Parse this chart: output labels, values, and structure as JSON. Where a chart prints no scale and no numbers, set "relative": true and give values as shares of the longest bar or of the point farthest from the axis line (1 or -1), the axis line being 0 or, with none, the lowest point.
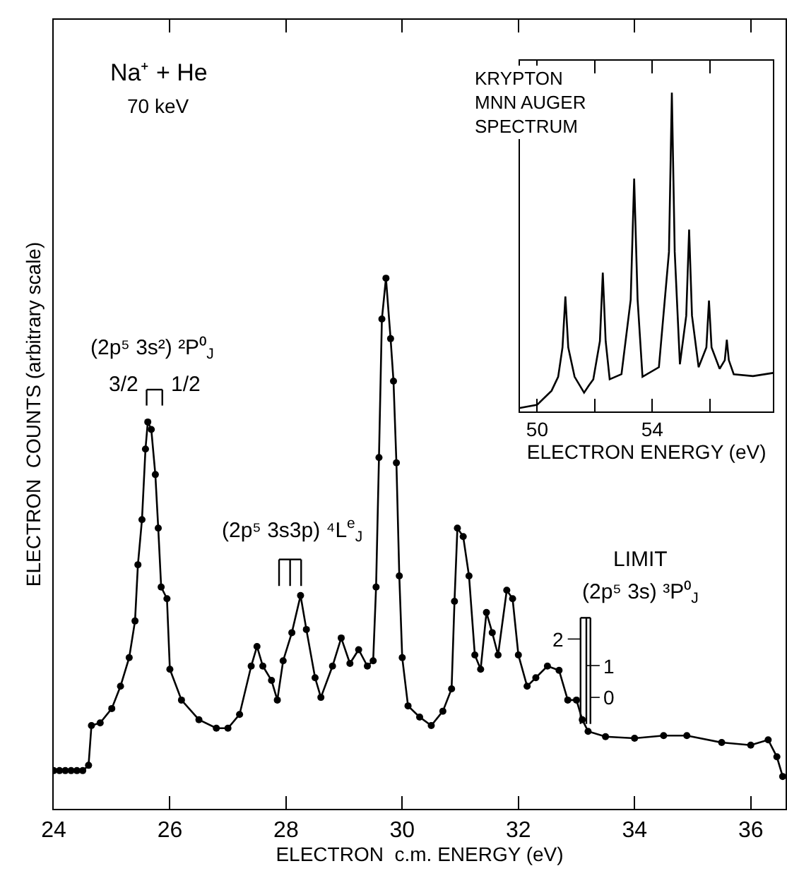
{
  "chart_data": [
    {
      "type": "line",
      "relative": true,
      "marker": "circle",
      "line_style": "solid",
      "xlabel": "ELECTRON  c.m. ENERGY (eV)",
      "ylabel": "ELECTRON  COUNTS (arbitrary scale)",
      "xlim": [
        24,
        36.6
      ],
      "xticks": [
        24,
        26,
        28,
        30,
        32,
        34,
        36
      ],
      "x": [
        24.0,
        24.1,
        24.2,
        24.3,
        24.4,
        24.5,
        24.6,
        24.65,
        24.8,
        25.0,
        25.15,
        25.3,
        25.4,
        25.45,
        25.52,
        25.58,
        25.62,
        25.68,
        25.75,
        25.8,
        25.85,
        25.95,
        26.0,
        26.2,
        26.5,
        26.8,
        27.0,
        27.2,
        27.4,
        27.5,
        27.6,
        27.75,
        27.85,
        27.95,
        28.1,
        28.25,
        28.35,
        28.5,
        28.6,
        28.8,
        28.95,
        29.1,
        29.25,
        29.4,
        29.5,
        29.55,
        29.6,
        29.65,
        29.72,
        29.8,
        29.85,
        29.9,
        29.95,
        30.0,
        30.1,
        30.3,
        30.5,
        30.7,
        30.85,
        30.9,
        30.95,
        31.05,
        31.15,
        31.25,
        31.35,
        31.45,
        31.55,
        31.65,
        31.8,
        31.9,
        32.0,
        32.15,
        32.3,
        32.5,
        32.7,
        32.85,
        33.0,
        33.1,
        33.2,
        33.5,
        34.0,
        34.5,
        34.9,
        35.5,
        36.0,
        36.3,
        36.45,
        36.55
      ],
      "series": [
        {
          "color": "#000000",
          "values": [
            0.072,
            0.072,
            0.072,
            0.072,
            0.072,
            0.072,
            0.082,
            0.157,
            0.162,
            0.189,
            0.231,
            0.285,
            0.354,
            0.46,
            0.545,
            0.678,
            0.729,
            0.715,
            0.63,
            0.529,
            0.418,
            0.396,
            0.263,
            0.205,
            0.168,
            0.152,
            0.152,
            0.178,
            0.269,
            0.306,
            0.269,
            0.242,
            0.205,
            0.279,
            0.332,
            0.402,
            0.338,
            0.247,
            0.21,
            0.269,
            0.322,
            0.274,
            0.3,
            0.269,
            0.279,
            0.418,
            0.662,
            0.923,
            1.0,
            0.886,
            0.806,
            0.652,
            0.439,
            0.285,
            0.194,
            0.173,
            0.157,
            0.184,
            0.226,
            0.391,
            0.529,
            0.513,
            0.439,
            0.29,
            0.263,
            0.37,
            0.332,
            0.29,
            0.412,
            0.396,
            0.29,
            0.231,
            0.247,
            0.269,
            0.261,
            0.205,
            0.205,
            0.168,
            0.146,
            0.136,
            0.133,
            0.138,
            0.138,
            0.125,
            0.12,
            0.13,
            0.098,
            0.061
          ]
        }
      ],
      "annotations": [
        "Na⁺ + He",
        "70 keV",
        "(2p⁵ 3s²) ²P⁰$_{J}$",
        "3/2",
        "1/2",
        "(2p⁵ 3s3p) ⁴L$^{e}$$_{J}$",
        "LIMIT",
        "(2p⁵ 3s) ³P⁰$_{J}$",
        "2",
        "1",
        "0"
      ]
    },
    {
      "type": "line",
      "relative": true,
      "marker": "none",
      "line_style": "solid",
      "title": "KRYPTON\nMNN AUGER\nSPECTRUM",
      "xlabel": "ELECTRON ENERGY (eV)",
      "xlim": [
        49.4,
        58.2
      ],
      "xticks": [
        50,
        {
          "value": 52,
          "label": null
        },
        54,
        {
          "value": 56,
          "label": null
        }
      ],
      "x": [
        49.4,
        50.0,
        50.5,
        50.73,
        50.88,
        50.98,
        51.08,
        51.3,
        51.63,
        51.79,
        51.95,
        52.18,
        52.28,
        52.38,
        52.52,
        52.93,
        53.25,
        53.37,
        53.49,
        53.66,
        54.23,
        54.58,
        54.68,
        54.78,
        54.96,
        55.18,
        55.28,
        55.38,
        55.61,
        55.88,
        55.97,
        56.06,
        56.34,
        56.52,
        56.59,
        56.66,
        56.83,
        57.5,
        58.2
      ],
      "series": [
        {
          "color": "#000000",
          "values": [
            0.01,
            0.02,
            0.064,
            0.108,
            0.2,
            0.36,
            0.2,
            0.108,
            0.058,
            0.08,
            0.1,
            0.22,
            0.435,
            0.22,
            0.1,
            0.116,
            0.35,
            0.73,
            0.35,
            0.108,
            0.138,
            0.5,
            1.0,
            0.5,
            0.147,
            0.3,
            0.57,
            0.3,
            0.138,
            0.2,
            0.347,
            0.2,
            0.133,
            0.16,
            0.224,
            0.16,
            0.116,
            0.11,
            0.12
          ]
        }
      ]
    }
  ]
}
